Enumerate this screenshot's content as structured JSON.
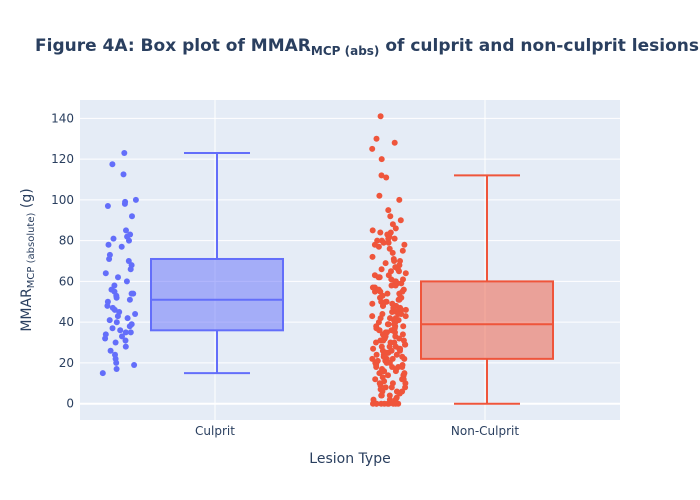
{
  "chart_data": {
    "type": "box",
    "title": {
      "main": "Figure 4A: Box plot of MMAR",
      "sub": "MCP (abs)",
      "rest": " of culprit and non-culprit lesions"
    },
    "xlabel": "Lesion Type",
    "ylabel": {
      "main": "MMAR",
      "sub": "MCP (absolute)",
      "rest": " (g)"
    },
    "ylim": [
      -8,
      149
    ],
    "yticks": [
      0,
      20,
      40,
      60,
      80,
      100,
      120,
      140
    ],
    "grid": true,
    "categories": [
      "Culprit",
      "Non-Culprit"
    ],
    "series": [
      {
        "category": "Culprit",
        "color": "#636efa",
        "min": 15,
        "q1": 36,
        "median": 51,
        "q3": 71,
        "max": 123,
        "points": [
          123,
          117.5,
          112.5,
          100,
          99,
          98,
          97,
          92,
          85,
          83,
          82,
          81,
          80,
          78,
          77,
          73,
          71,
          70,
          68,
          66,
          64,
          62,
          60,
          58,
          56,
          55,
          54,
          54,
          53,
          52,
          51,
          50,
          48,
          47,
          46,
          45,
          44,
          43,
          42,
          41,
          40,
          39,
          38,
          37,
          36,
          35,
          35,
          34,
          33,
          32,
          31,
          30,
          28,
          26,
          24,
          22,
          20,
          19,
          17,
          15
        ]
      },
      {
        "category": "Non-Culprit",
        "color": "#ef553b",
        "min": 0,
        "q1": 22,
        "median": 39,
        "q3": 60,
        "max": 112,
        "points": [
          141,
          130,
          128,
          125,
          120,
          112,
          111,
          102,
          100,
          95,
          92,
          90,
          88,
          86,
          85,
          84,
          83,
          82,
          81,
          80,
          79,
          78,
          77,
          76,
          75,
          74,
          72,
          71,
          70,
          69,
          68,
          67,
          66,
          65,
          64,
          63,
          62,
          61,
          60,
          59,
          58,
          58,
          57,
          56,
          55,
          55,
          54,
          54,
          53,
          52,
          52,
          51,
          50,
          50,
          49,
          48,
          48,
          47,
          46,
          46,
          45,
          44,
          44,
          43,
          42,
          42,
          41,
          40,
          40,
          39,
          39,
          38,
          38,
          37,
          36,
          36,
          35,
          35,
          34,
          33,
          33,
          32,
          31,
          31,
          30,
          30,
          29,
          28,
          28,
          27,
          27,
          26,
          25,
          25,
          24,
          23,
          23,
          22,
          22,
          21,
          20,
          20,
          19,
          18,
          18,
          17,
          16,
          16,
          15,
          14,
          14,
          13,
          12,
          12,
          11,
          10,
          10,
          9,
          8,
          8,
          7,
          6,
          6,
          5,
          4,
          4,
          3,
          2,
          2,
          1,
          0,
          0,
          0,
          0,
          0,
          0,
          0,
          0,
          0,
          0,
          26,
          24,
          22,
          20,
          18,
          16,
          14,
          12,
          10,
          8,
          6,
          4,
          2,
          35,
          33,
          31,
          29,
          27,
          25,
          23,
          21,
          19,
          17,
          15,
          45,
          43,
          41,
          39,
          37,
          55,
          53,
          51,
          49,
          47,
          65,
          63,
          61,
          59,
          57,
          30,
          28,
          26,
          24,
          22,
          20,
          18,
          40,
          38,
          36,
          34,
          32,
          50,
          48,
          46,
          44,
          42,
          60,
          56,
          52,
          70,
          66,
          62,
          80,
          78,
          84,
          79,
          81
        ]
      }
    ]
  }
}
